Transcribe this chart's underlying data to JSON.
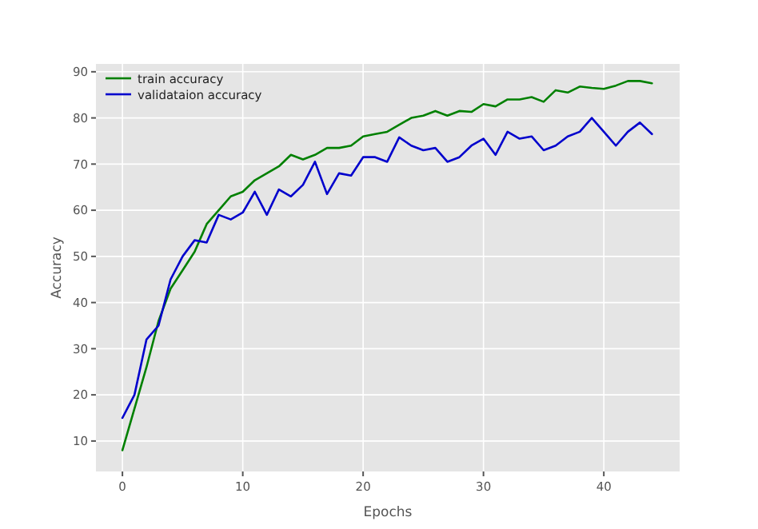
{
  "chart_data": {
    "type": "line",
    "xlabel": "Epochs",
    "ylabel": "Accuracy",
    "x": [
      0,
      1,
      2,
      3,
      4,
      5,
      6,
      7,
      8,
      9,
      10,
      11,
      12,
      13,
      14,
      15,
      16,
      17,
      18,
      19,
      20,
      21,
      22,
      23,
      24,
      25,
      26,
      27,
      28,
      29,
      30,
      31,
      32,
      33,
      34,
      35,
      36,
      37,
      38,
      39,
      40,
      41,
      42,
      43,
      44
    ],
    "series": [
      {
        "name": "train accuracy",
        "color": "#008000",
        "values": [
          8,
          17,
          26,
          36,
          43,
          47,
          51,
          57,
          60,
          63,
          64,
          66.5,
          68,
          69.5,
          72,
          71,
          72,
          73.5,
          73.5,
          74,
          76,
          76.5,
          77,
          78.5,
          80,
          80.5,
          81.5,
          80.5,
          81.5,
          81.3,
          83,
          82.5,
          84,
          84,
          84.5,
          83.5,
          86,
          85.5,
          86.8,
          86.5,
          86.3,
          87,
          88,
          88,
          87.5
        ]
      },
      {
        "name": "validataion accuracy",
        "color": "#0000cc",
        "values": [
          15,
          20,
          32,
          35,
          45,
          50,
          53.5,
          53,
          59,
          58,
          59.5,
          64,
          59,
          64.5,
          63,
          65.5,
          70.5,
          63.5,
          68,
          67.5,
          71.5,
          71.5,
          70.5,
          75.8,
          74,
          73,
          73.5,
          70.5,
          71.5,
          74,
          75.5,
          72,
          77,
          75.5,
          76,
          73,
          74,
          76,
          77,
          80,
          77,
          74,
          77,
          79,
          76.5
        ]
      }
    ],
    "xlim": [
      -2.2,
      46.3
    ],
    "ylim": [
      3.4,
      91.7
    ],
    "xticks": [
      0,
      10,
      20,
      30,
      40
    ],
    "yticks": [
      10,
      20,
      30,
      40,
      50,
      60,
      70,
      80,
      90
    ],
    "grid": true,
    "legend": "top left",
    "line_style": "solid",
    "marker": "none"
  }
}
